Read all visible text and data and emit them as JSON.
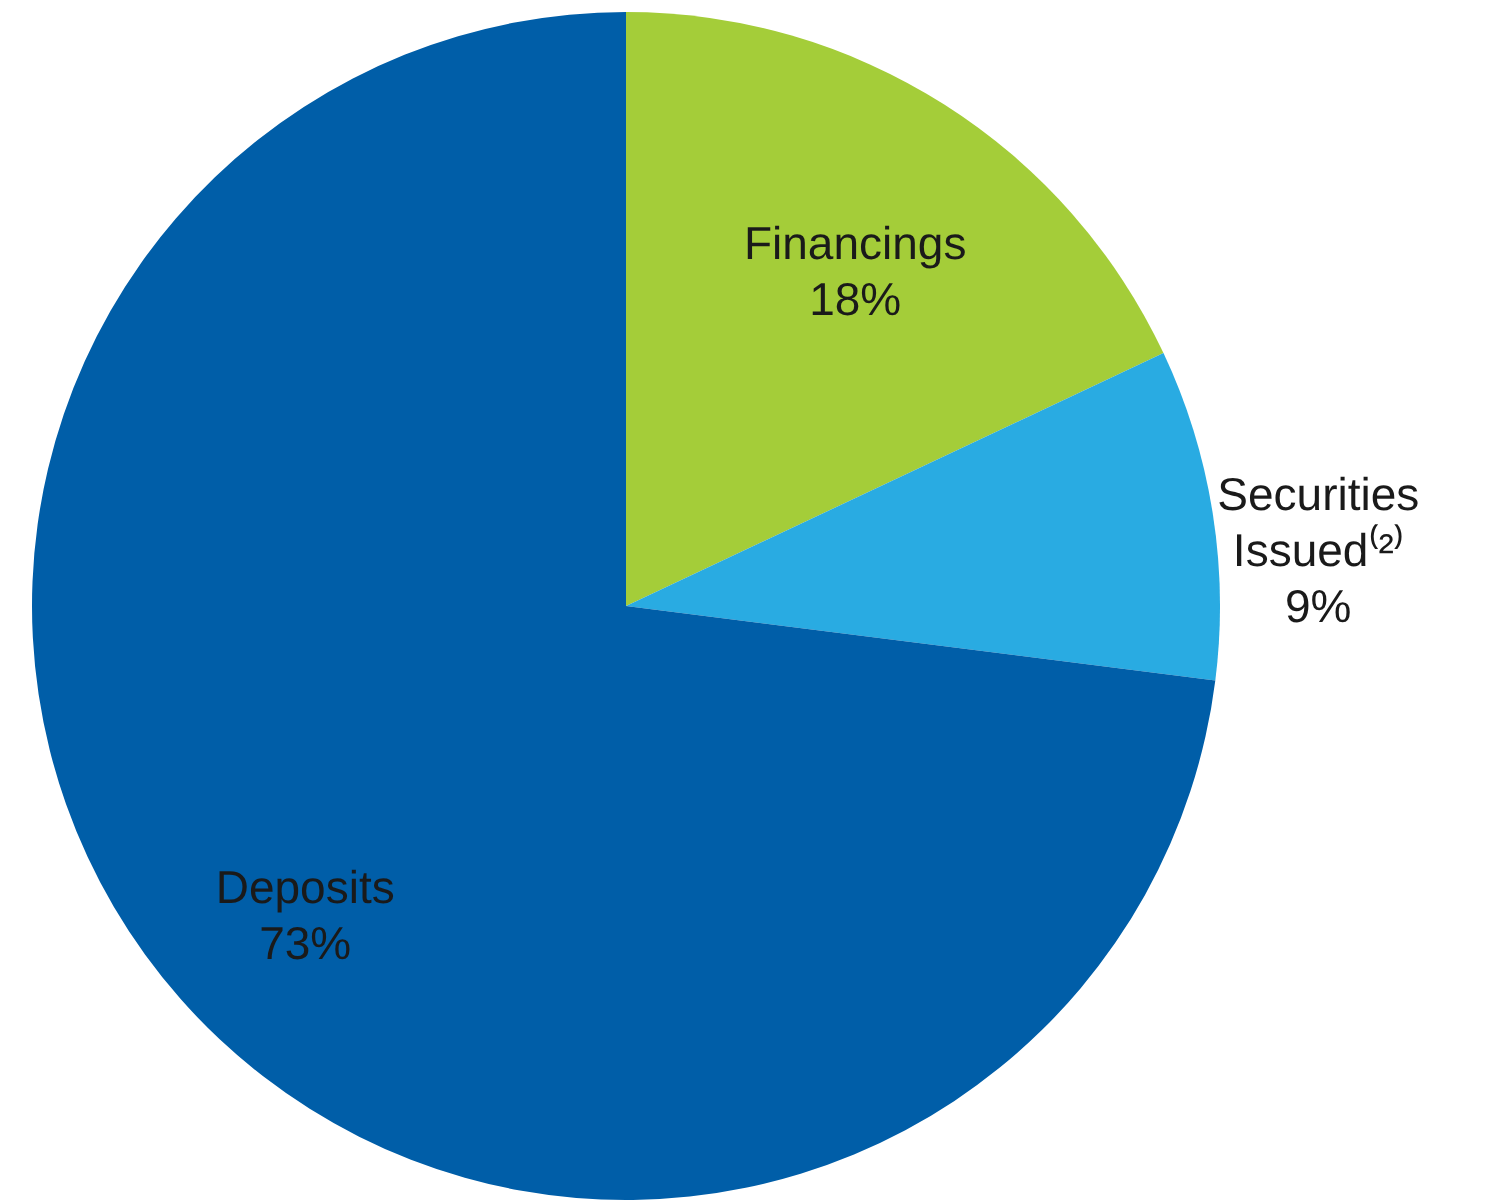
{
  "chart_data": {
    "type": "pie",
    "categories": [
      "Financings",
      "Securities Issued⁽²⁾",
      "Deposits"
    ],
    "values": [
      18,
      9,
      73
    ],
    "colors": [
      "#a4cd39",
      "#29abe2",
      "#005ea8"
    ],
    "value_labels": [
      "18%",
      "9%",
      "73%"
    ]
  }
}
